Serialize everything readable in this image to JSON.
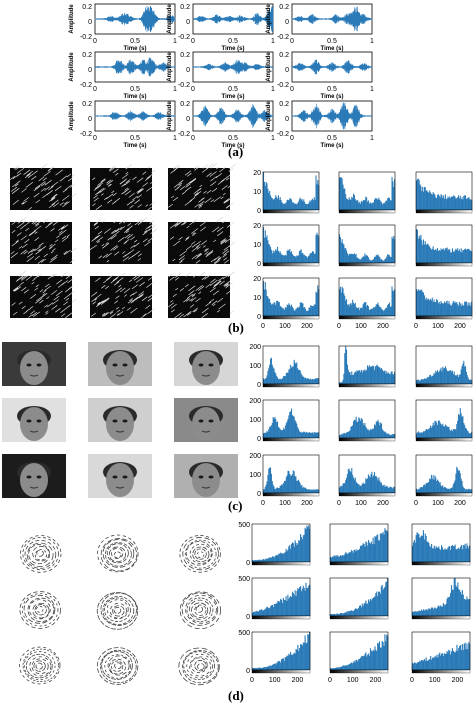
{
  "panel_labels": {
    "a": "(a)",
    "b": "(b)",
    "c": "(c)",
    "d": "(d)"
  },
  "waveform": {
    "ylabel": "Amplitude",
    "xlabel": "Time (s)",
    "yticks": [
      "0.2",
      "0",
      "-0.2"
    ],
    "xticks": [
      "0",
      "0.5",
      "1"
    ],
    "color": "#2a7ab8"
  },
  "image_sets": {
    "b_description_kind": "encrypted-noise",
    "c_kind": "faces",
    "d_kind": "fingerprints"
  },
  "chart_data": [
    {
      "type": "bar",
      "panel": "b",
      "layout": "3x3 grid of histograms",
      "ylim": [
        0,
        20
      ],
      "yticks": [
        "0",
        "10",
        "20"
      ],
      "xticks": [
        "0",
        "100",
        "200"
      ],
      "xlim": [
        0,
        255
      ],
      "color": "#2a7ab8"
    },
    {
      "type": "bar",
      "panel": "c",
      "layout": "3x3 grid of histograms",
      "ylim": [
        0,
        200
      ],
      "yticks": [
        "0",
        "100",
        "200"
      ],
      "xticks": [
        "0",
        "100",
        "200"
      ],
      "xlim": [
        0,
        255
      ],
      "color": "#2a7ab8"
    },
    {
      "type": "bar",
      "panel": "d",
      "layout": "3x3 grid of histograms",
      "ylim": [
        0,
        500
      ],
      "yticks": [
        "0",
        "500"
      ],
      "xticks": [
        "0",
        "100",
        "200"
      ],
      "xlim": [
        0,
        255
      ],
      "color": "#2a7ab8"
    }
  ]
}
